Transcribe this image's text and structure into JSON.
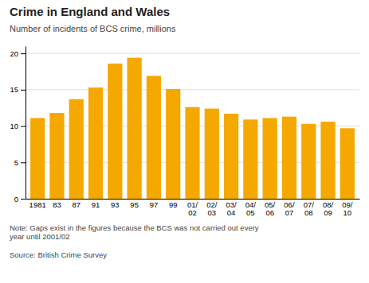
{
  "chart_data": {
    "type": "bar",
    "title": "Crime in England and Wales",
    "subtitle": "Number of incidents of BCS crime, millions",
    "note": "Note: Gaps exist in the figures because the BCS was not carried out every\nyear until 2001/02",
    "source": "Source: British Crime Survey",
    "categories": [
      "1981",
      "83",
      "87",
      "91",
      "93",
      "95",
      "97",
      "99",
      "01/\n02",
      "02/\n03",
      "03/\n04",
      "04/\n05",
      "05/\n06",
      "06/\n07",
      "07/\n08",
      "08/\n09",
      "09/\n10"
    ],
    "values": [
      11.1,
      11.8,
      13.7,
      15.3,
      18.6,
      19.4,
      16.9,
      15.1,
      12.6,
      12.4,
      11.7,
      10.9,
      11.1,
      11.3,
      10.3,
      10.6,
      9.7
    ],
    "color": "#F5A800",
    "ylim": [
      0,
      21
    ],
    "yticks": [
      0,
      5,
      10,
      15,
      20
    ],
    "grid": true
  }
}
